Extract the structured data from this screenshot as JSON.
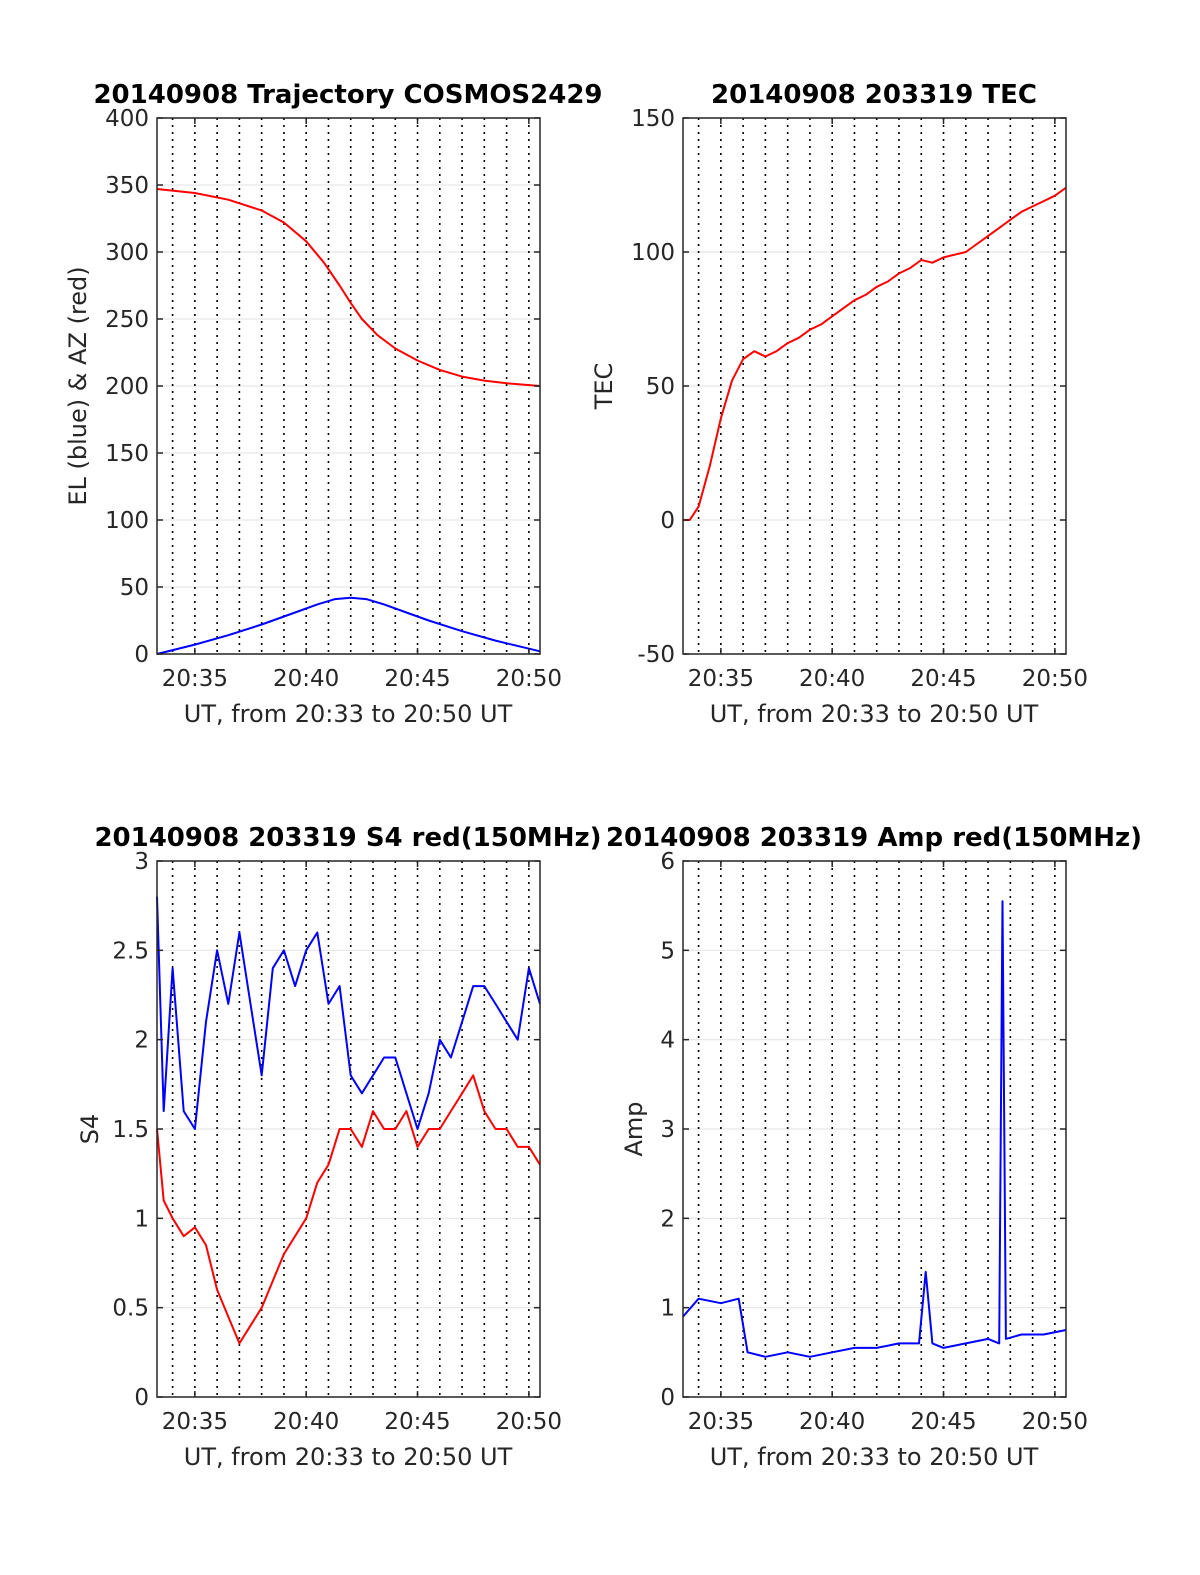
{
  "colors": {
    "red": "#ff0000",
    "blue": "#0000ff",
    "axis": "#262626",
    "grid": "#e6e6e6",
    "vgrid": "#000000"
  },
  "chart_data": [
    {
      "type": "line",
      "title": "20140908 Trajectory COSMOS2429",
      "xlabel": "UT, from 20:33 to 20:50 UT",
      "ylabel": "EL (blue) & AZ (red)",
      "xlim": [
        33.3,
        50.5
      ],
      "ylim": [
        0,
        400
      ],
      "yticks": [
        0,
        50,
        100,
        150,
        200,
        250,
        300,
        350,
        400
      ],
      "xticks": [
        35,
        40,
        45,
        50
      ],
      "xtick_labels": [
        "20:35",
        "20:40",
        "20:45",
        "20:50"
      ],
      "grid": true,
      "series": [
        {
          "color": "#ff0000",
          "x": [
            33.3,
            35,
            36.5,
            38,
            39,
            40,
            40.8,
            41.5,
            42,
            42.5,
            43.2,
            44,
            45,
            46,
            47,
            48,
            49,
            50.5
          ],
          "y": [
            347,
            344,
            339,
            331,
            322,
            308,
            292,
            275,
            262,
            250,
            238,
            228,
            219,
            212,
            207,
            204,
            202,
            200
          ]
        },
        {
          "color": "#0000ff",
          "x": [
            33.3,
            35,
            36.5,
            38,
            39.5,
            40.5,
            41.3,
            42,
            42.7,
            43.5,
            44.5,
            45.5,
            47,
            48.5,
            50.5
          ],
          "y": [
            0,
            7,
            14,
            22,
            31,
            37,
            41,
            42,
            41,
            37,
            31,
            25,
            17,
            10,
            2
          ]
        }
      ]
    },
    {
      "type": "line",
      "title": "20140908 203319 TEC",
      "xlabel": "UT, from 20:33 to 20:50 UT",
      "ylabel": "TEC",
      "xlim": [
        33.3,
        50.5
      ],
      "ylim": [
        -50,
        150
      ],
      "yticks": [
        -50,
        0,
        50,
        100,
        150
      ],
      "xticks": [
        35,
        40,
        45,
        50
      ],
      "xtick_labels": [
        "20:35",
        "20:40",
        "20:45",
        "20:50"
      ],
      "grid": true,
      "series": [
        {
          "color": "#ff0000",
          "x": [
            33.3,
            33.6,
            34,
            34.5,
            35,
            35.5,
            36,
            36.5,
            37,
            37.5,
            38,
            38.5,
            39,
            39.5,
            40,
            40.5,
            41,
            41.5,
            42,
            42.5,
            43,
            43.5,
            44,
            44.5,
            45,
            45.5,
            46,
            46.5,
            47,
            47.5,
            48,
            48.5,
            49,
            49.5,
            50,
            50.5
          ],
          "y": [
            0,
            0,
            5,
            20,
            38,
            52,
            60,
            63,
            61,
            63,
            66,
            68,
            71,
            73,
            76,
            79,
            82,
            84,
            87,
            89,
            92,
            94,
            97,
            96,
            98,
            99,
            100,
            103,
            106,
            109,
            112,
            115,
            117,
            119,
            121,
            124
          ]
        }
      ]
    },
    {
      "type": "line",
      "title": "20140908 203319 S4 red(150MHz)",
      "xlabel": "UT, from 20:33 to 20:50 UT",
      "ylabel": "S4",
      "xlim": [
        33.3,
        50.5
      ],
      "ylim": [
        0,
        3
      ],
      "yticks": [
        0,
        0.5,
        1,
        1.5,
        2,
        2.5,
        3
      ],
      "xticks": [
        35,
        40,
        45,
        50
      ],
      "xtick_labels": [
        "20:35",
        "20:40",
        "20:45",
        "20:50"
      ],
      "grid": true,
      "series": [
        {
          "color": "#0000ff",
          "x": [
            33.3,
            33.6,
            34,
            34.5,
            35,
            35.5,
            36,
            36.5,
            37,
            37.5,
            38,
            38.5,
            39,
            39.5,
            40,
            40.5,
            41,
            41.5,
            42,
            42.5,
            43,
            43.5,
            44,
            44.5,
            45,
            45.5,
            46,
            46.5,
            47,
            47.5,
            48,
            48.5,
            49,
            49.5,
            50,
            50.5
          ],
          "y": [
            2.8,
            1.6,
            2.4,
            1.6,
            1.5,
            2.1,
            2.5,
            2.2,
            2.6,
            2.2,
            1.8,
            2.4,
            2.5,
            2.3,
            2.5,
            2.6,
            2.2,
            2.3,
            1.8,
            1.7,
            1.8,
            1.9,
            1.9,
            1.7,
            1.5,
            1.7,
            2.0,
            1.9,
            2.1,
            2.3,
            2.3,
            2.2,
            2.1,
            2.0,
            2.4,
            2.2
          ]
        },
        {
          "color": "#ff0000",
          "x": [
            33.3,
            33.6,
            34,
            34.5,
            35,
            35.5,
            36,
            37,
            38,
            39,
            40,
            40.5,
            41,
            41.5,
            42,
            42.5,
            43,
            43.5,
            44,
            44.5,
            45,
            45.5,
            46,
            46.5,
            47,
            47.5,
            48,
            48.5,
            49,
            49.5,
            50,
            50.5
          ],
          "y": [
            1.5,
            1.1,
            1.0,
            0.9,
            0.95,
            0.85,
            0.6,
            0.3,
            0.5,
            0.8,
            1.0,
            1.2,
            1.3,
            1.5,
            1.5,
            1.4,
            1.6,
            1.5,
            1.5,
            1.6,
            1.4,
            1.5,
            1.5,
            1.6,
            1.7,
            1.8,
            1.6,
            1.5,
            1.5,
            1.4,
            1.4,
            1.3
          ]
        }
      ]
    },
    {
      "type": "line",
      "title": "20140908 203319 Amp red(150MHz)",
      "xlabel": "UT, from 20:33 to 20:50 UT",
      "ylabel": "Amp",
      "xlim": [
        33.3,
        50.5
      ],
      "ylim": [
        0,
        6
      ],
      "yticks": [
        0,
        1,
        2,
        3,
        4,
        5,
        6
      ],
      "xticks": [
        35,
        40,
        45,
        50
      ],
      "xtick_labels": [
        "20:35",
        "20:40",
        "20:45",
        "20:50"
      ],
      "grid": true,
      "series": [
        {
          "color": "#0000ff",
          "x": [
            33.3,
            34,
            35,
            35.8,
            36.2,
            37,
            38,
            39,
            40,
            41,
            42,
            43,
            43.9,
            44.2,
            44.5,
            45,
            46,
            47,
            47.5,
            47.65,
            47.8,
            48.5,
            49.5,
            50.5
          ],
          "y": [
            0.9,
            1.1,
            1.05,
            1.1,
            0.5,
            0.45,
            0.5,
            0.45,
            0.5,
            0.55,
            0.55,
            0.6,
            0.6,
            1.4,
            0.6,
            0.55,
            0.6,
            0.65,
            0.6,
            5.55,
            0.65,
            0.7,
            0.7,
            0.75
          ]
        }
      ]
    }
  ]
}
